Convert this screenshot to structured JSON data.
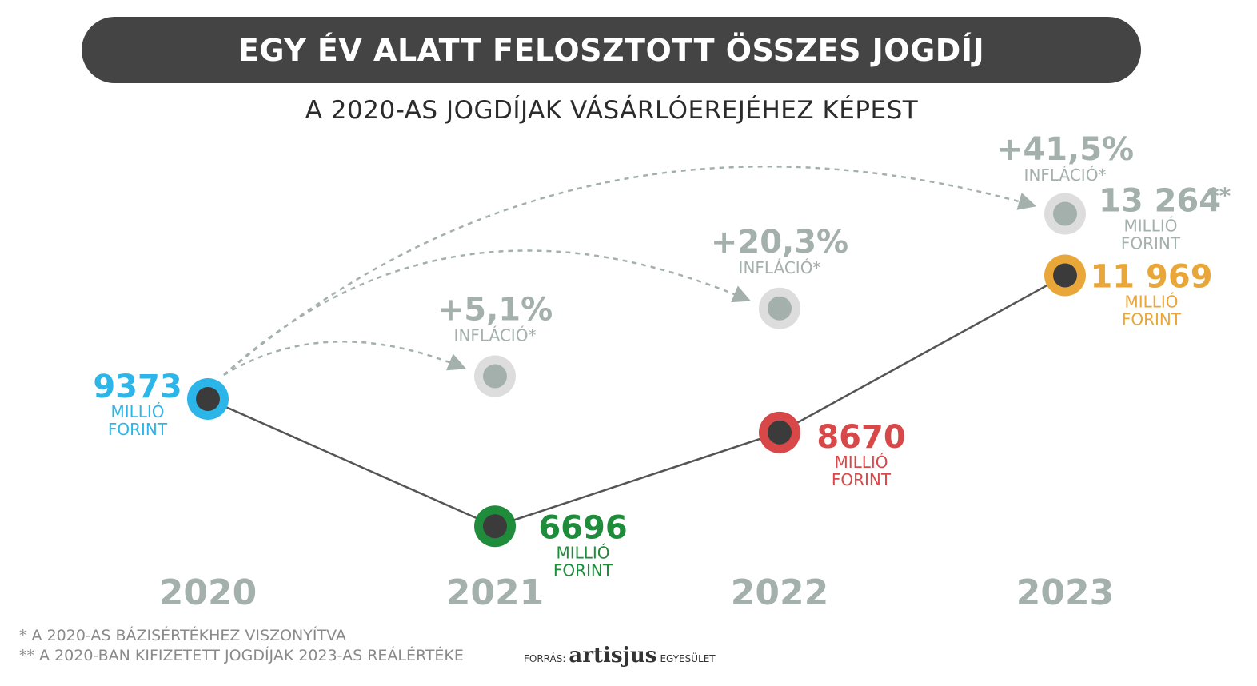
{
  "header": {
    "title": "EGY ÉV ALATT FELOSZTOTT ÖSSZES JOGDÍJ",
    "subtitle": "A 2020-AS JOGDÍJAK VÁSÁRLÓEREJÉHEZ KÉPEST"
  },
  "chart_data": {
    "type": "line",
    "categories": [
      "2020",
      "2021",
      "2022",
      "2023"
    ],
    "unit_lines": [
      "MILLIÓ",
      "FORINT"
    ],
    "series": [
      {
        "values": [
          9373,
          6696,
          8670,
          11969
        ],
        "labels": [
          "9373",
          "6696",
          "8670",
          "11 969"
        ],
        "colors": [
          "#2bb5e8",
          "#1e8c3a",
          "#d94848",
          "#e9a73a"
        ]
      }
    ],
    "inflation": [
      {
        "year": "2021",
        "value": 9851,
        "label": "+5,1%"
      },
      {
        "year": "2022",
        "value": 11276,
        "label": "+20,3%"
      },
      {
        "year": "2023",
        "value": 13264,
        "label": "+41,5%",
        "value_label": "13 264",
        "value_suffix": "**"
      }
    ],
    "inflation_label": "INFLÁCIÓ*",
    "colors": {
      "line": "#555555",
      "inflation": "#a4b0ac",
      "inflation_ring": "#dddddd",
      "year": "#a4b0ac",
      "dot": "#3b3b3b"
    }
  },
  "footnotes": [
    "*   A 2020-AS BÁZISÉRTÉKHEZ VISZONYÍTVA",
    "** A 2020-BAN KIFIZETETT JOGDÍJAK 2023-AS REÁLÉRTÉKE"
  ],
  "source": {
    "prefix": "FORRÁS:",
    "brand": "artisjus",
    "suffix": "EGYESÜLET"
  }
}
